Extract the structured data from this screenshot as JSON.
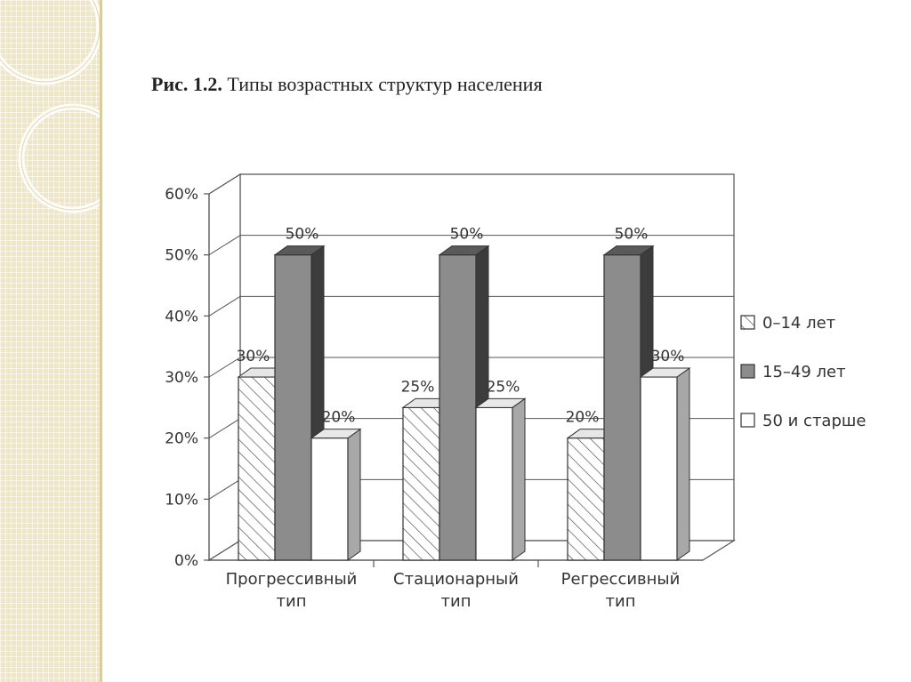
{
  "figure": {
    "number": "Рис. 1.2.",
    "caption": "Типы возрастных структур населения"
  },
  "chart_data": {
    "type": "bar",
    "title": "",
    "categories": [
      [
        "Прогрессивный",
        "тип"
      ],
      [
        "Стационарный",
        "тип"
      ],
      [
        "Регрессивный",
        "тип"
      ]
    ],
    "series": [
      {
        "name": "0–14 лет",
        "values": [
          30,
          25,
          20
        ],
        "labels": [
          "30%",
          "25%",
          "20%"
        ],
        "pattern": "hatched",
        "color": "#ffffff"
      },
      {
        "name": "15–49 лет",
        "values": [
          50,
          50,
          50
        ],
        "labels": [
          "50%",
          "50%",
          "50%"
        ],
        "pattern": "solid",
        "color": "#8c8c8c"
      },
      {
        "name": "50 и старше",
        "values": [
          20,
          25,
          30
        ],
        "labels": [
          "20%",
          "25%",
          "30%"
        ],
        "pattern": "solid",
        "color": "#ffffff"
      }
    ],
    "ylim": [
      0,
      60
    ],
    "yticks": [
      "0%",
      "10%",
      "20%",
      "30%",
      "40%",
      "50%",
      "60%"
    ],
    "grid": true,
    "three_d": true,
    "legend_position": "right"
  }
}
